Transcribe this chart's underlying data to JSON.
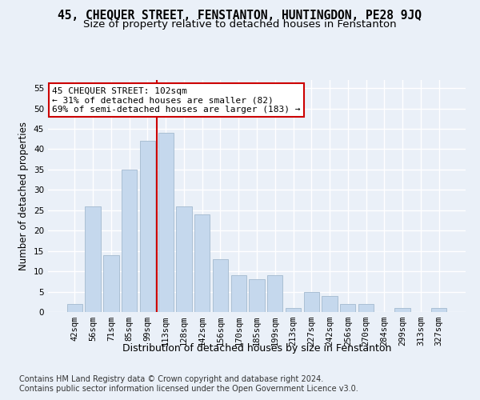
{
  "title": "45, CHEQUER STREET, FENSTANTON, HUNTINGDON, PE28 9JQ",
  "subtitle": "Size of property relative to detached houses in Fenstanton",
  "xlabel": "Distribution of detached houses by size in Fenstanton",
  "ylabel": "Number of detached properties",
  "categories": [
    "42sqm",
    "56sqm",
    "71sqm",
    "85sqm",
    "99sqm",
    "113sqm",
    "128sqm",
    "142sqm",
    "156sqm",
    "170sqm",
    "185sqm",
    "199sqm",
    "213sqm",
    "227sqm",
    "242sqm",
    "256sqm",
    "270sqm",
    "284sqm",
    "299sqm",
    "313sqm",
    "327sqm"
  ],
  "values": [
    2,
    26,
    14,
    35,
    42,
    44,
    26,
    24,
    13,
    9,
    8,
    9,
    1,
    5,
    4,
    2,
    2,
    0,
    1,
    0,
    1
  ],
  "bar_color": "#c5d8ed",
  "bar_edge_color": "#aabfd4",
  "property_line_x": 4.5,
  "property_line_color": "#cc0000",
  "annotation_text": "45 CHEQUER STREET: 102sqm\n← 31% of detached houses are smaller (82)\n69% of semi-detached houses are larger (183) →",
  "annotation_box_color": "#ffffff",
  "annotation_box_edge_color": "#cc0000",
  "ylim": [
    0,
    57
  ],
  "yticks": [
    0,
    5,
    10,
    15,
    20,
    25,
    30,
    35,
    40,
    45,
    50,
    55
  ],
  "footer_line1": "Contains HM Land Registry data © Crown copyright and database right 2024.",
  "footer_line2": "Contains public sector information licensed under the Open Government Licence v3.0.",
  "bg_color": "#eaf0f8",
  "plot_bg_color": "#eaf0f8",
  "grid_color": "#ffffff",
  "title_fontsize": 10.5,
  "subtitle_fontsize": 9.5,
  "axis_label_fontsize": 8.5,
  "tick_fontsize": 7.5,
  "footer_fontsize": 7
}
